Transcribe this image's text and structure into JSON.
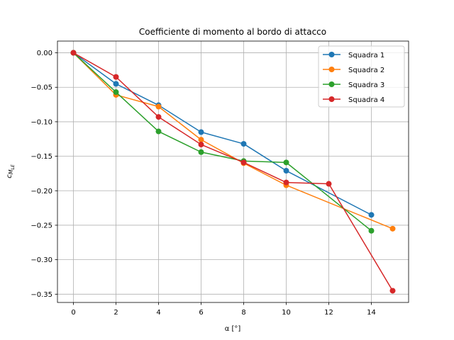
{
  "chart_data": {
    "type": "line",
    "title": "Coefficiente di momento al bordo di attacco",
    "xlabel": "α [°]",
    "ylabel": "c_{M_LE}",
    "xlim": [
      -0.75,
      15.75
    ],
    "ylim": [
      -0.362,
      0.017
    ],
    "xticks": [
      0,
      2,
      4,
      6,
      8,
      10,
      12,
      14
    ],
    "xtick_labels": [
      "0",
      "2",
      "4",
      "6",
      "8",
      "10",
      "12",
      "14"
    ],
    "yticks": [
      0.0,
      -0.05,
      -0.1,
      -0.15,
      -0.2,
      -0.25,
      -0.3,
      -0.35
    ],
    "ytick_labels": [
      "0.00",
      "−0.05",
      "−0.10",
      "−0.15",
      "−0.20",
      "−0.25",
      "−0.30",
      "−0.35"
    ],
    "grid": true,
    "legend_position": "top-right",
    "series": [
      {
        "name": "Squadra 1",
        "color": "#1f77b4",
        "x": [
          0,
          2,
          4,
          6,
          8,
          10,
          14
        ],
        "y": [
          0.0,
          -0.045,
          -0.076,
          -0.115,
          -0.132,
          -0.171,
          -0.235
        ]
      },
      {
        "name": "Squadra 2",
        "color": "#ff7f0e",
        "x": [
          0,
          2,
          4,
          6,
          8,
          10,
          15
        ],
        "y": [
          0.0,
          -0.061,
          -0.078,
          -0.126,
          -0.16,
          -0.192,
          -0.255
        ]
      },
      {
        "name": "Squadra 3",
        "color": "#2ca02c",
        "x": [
          0,
          2,
          4,
          6,
          8,
          10,
          14
        ],
        "y": [
          0.0,
          -0.057,
          -0.114,
          -0.144,
          -0.157,
          -0.159,
          -0.258
        ]
      },
      {
        "name": "Squadra 4",
        "color": "#d62728",
        "x": [
          0,
          2,
          4,
          6,
          8,
          10,
          12,
          15
        ],
        "y": [
          0.0,
          -0.035,
          -0.093,
          -0.133,
          -0.159,
          -0.188,
          -0.19,
          -0.345
        ]
      }
    ]
  }
}
